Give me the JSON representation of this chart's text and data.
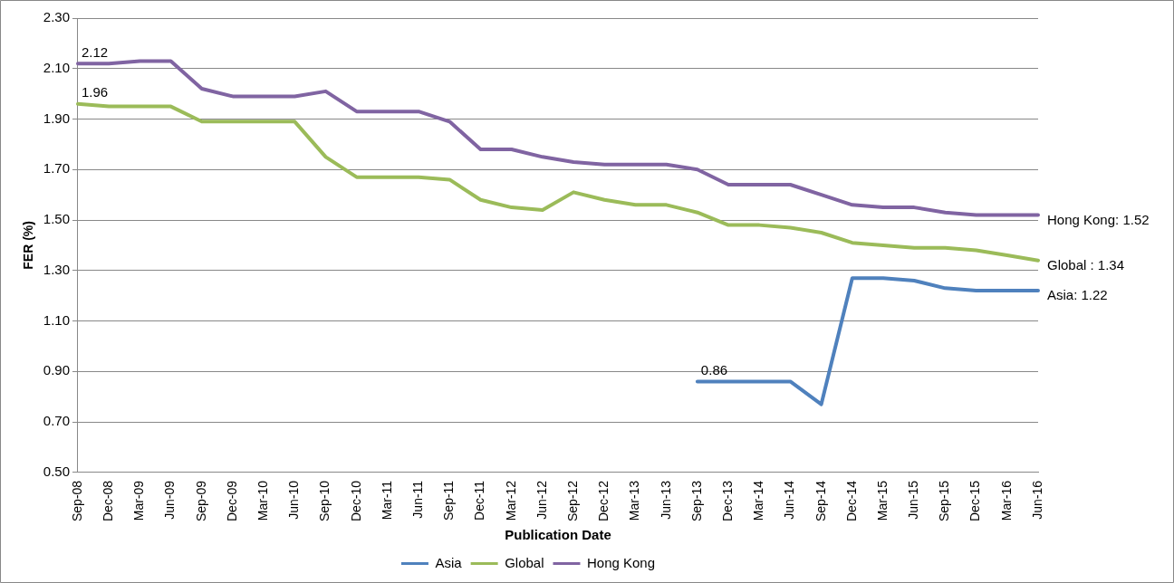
{
  "chart_data": {
    "type": "line",
    "xlabel": "Publication Date",
    "ylabel": "FER (%)",
    "categories": [
      "Sep-08",
      "Dec-08",
      "Mar-09",
      "Jun-09",
      "Sep-09",
      "Dec-09",
      "Mar-10",
      "Jun-10",
      "Sep-10",
      "Dec-10",
      "Mar-11",
      "Jun-11",
      "Sep-11",
      "Dec-11",
      "Mar-12",
      "Jun-12",
      "Sep-12",
      "Dec-12",
      "Mar-13",
      "Jun-13",
      "Sep-13",
      "Dec-13",
      "Mar-14",
      "Jun-14",
      "Sep-14",
      "Dec-14",
      "Mar-15",
      "Jun-15",
      "Sep-15",
      "Dec-15",
      "Mar-16",
      "Jun-16"
    ],
    "series": [
      {
        "name": "Asia",
        "color": "#4f81bd",
        "values": [
          null,
          null,
          null,
          null,
          null,
          null,
          null,
          null,
          null,
          null,
          null,
          null,
          null,
          null,
          null,
          null,
          null,
          null,
          null,
          null,
          0.86,
          0.86,
          0.86,
          0.86,
          0.77,
          1.27,
          1.27,
          1.26,
          1.23,
          1.22,
          1.22,
          1.22
        ]
      },
      {
        "name": "Global",
        "color": "#9bbb59",
        "values": [
          1.96,
          1.95,
          1.95,
          1.95,
          1.89,
          1.89,
          1.89,
          1.89,
          1.75,
          1.67,
          1.67,
          1.67,
          1.66,
          1.58,
          1.55,
          1.54,
          1.61,
          1.58,
          1.56,
          1.56,
          1.53,
          1.48,
          1.48,
          1.47,
          1.45,
          1.41,
          1.4,
          1.39,
          1.39,
          1.38,
          1.36,
          1.34
        ]
      },
      {
        "name": "Hong Kong",
        "color": "#8064a2",
        "values": [
          2.12,
          2.12,
          2.13,
          2.13,
          2.02,
          1.99,
          1.99,
          1.99,
          2.01,
          1.93,
          1.93,
          1.93,
          1.89,
          1.78,
          1.78,
          1.75,
          1.73,
          1.72,
          1.72,
          1.72,
          1.7,
          1.64,
          1.64,
          1.64,
          1.6,
          1.56,
          1.55,
          1.55,
          1.53,
          1.52,
          1.52,
          1.52
        ]
      }
    ],
    "ylim": [
      0.5,
      2.3
    ],
    "yticks": [
      {
        "value": 0.5,
        "label": "0.50"
      },
      {
        "value": 0.7,
        "label": "0.70"
      },
      {
        "value": 0.9,
        "label": "0.90"
      },
      {
        "value": 1.1,
        "label": "1.10"
      },
      {
        "value": 1.3,
        "label": "1.30"
      },
      {
        "value": 1.5,
        "label": "1.50"
      },
      {
        "value": 1.7,
        "label": "1.70"
      },
      {
        "value": 1.9,
        "label": "1.90"
      },
      {
        "value": 2.1,
        "label": "2.10"
      },
      {
        "value": 2.3,
        "label": "2.30"
      }
    ],
    "grid": "y",
    "legend": "bottom",
    "marker": "none",
    "line_style": "solid",
    "annotations": [
      {
        "text": "2.12",
        "x": "Sep-08",
        "y": 2.12
      },
      {
        "text": "1.96",
        "x": "Sep-08",
        "y": 1.96
      },
      {
        "text": "0.86",
        "x": "Sep-13",
        "y": 0.86
      },
      {
        "text": "Hong Kong: 1.52",
        "x": "Jun-16",
        "y": 1.52
      },
      {
        "text": "Global : 1.34",
        "x": "Jun-16",
        "y": 1.34
      },
      {
        "text": "Asia: 1.22",
        "x": "Jun-16",
        "y": 1.22
      }
    ]
  }
}
